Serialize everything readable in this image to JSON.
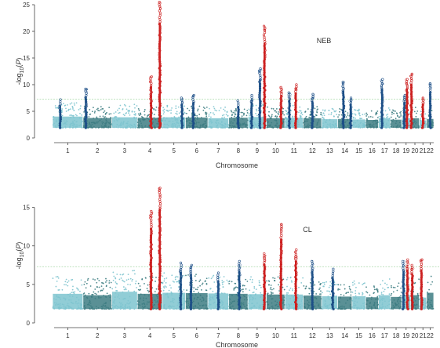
{
  "chart_data": [
    {
      "type": "scatter",
      "subtype": "manhattan",
      "panel_label": "NEB",
      "xlabel": "Chromosome",
      "ylabel": "-log10(P)",
      "ylim": [
        0,
        25
      ],
      "yticks": [
        0,
        5,
        10,
        15,
        20,
        25
      ],
      "categories": [
        "1",
        "2",
        "3",
        "4",
        "5",
        "6",
        "7",
        "8",
        "9",
        "10",
        "11",
        "12",
        "13",
        "14",
        "15",
        "16",
        "17",
        "18",
        "19",
        "20",
        "21",
        "22"
      ],
      "significance_threshold": 7.3,
      "baseline_min": 1.9,
      "bulk_max": [
        6.6,
        6.0,
        6.3,
        6.1,
        6.3,
        6.2,
        5.9,
        6.1,
        6.4,
        5.9,
        6.1,
        5.9,
        5.5,
        5.6,
        5.4,
        5.2,
        5.9,
        5.3,
        5.9,
        5.9,
        5.0,
        5.6
      ],
      "peaks": [
        {
          "chr": "1",
          "pos": 0.25,
          "max": 7.2,
          "color": "navy"
        },
        {
          "chr": "2",
          "pos": 0.1,
          "max": 9.2,
          "color": "navy"
        },
        {
          "chr": "4",
          "pos": 0.55,
          "max": 11.5,
          "color": "red"
        },
        {
          "chr": "4",
          "pos": 0.9,
          "max": 25.5,
          "color": "red"
        },
        {
          "chr": "5",
          "pos": 0.85,
          "max": 7.5,
          "color": "navy"
        },
        {
          "chr": "6",
          "pos": 0.35,
          "max": 8.0,
          "color": "navy"
        },
        {
          "chr": "8",
          "pos": 0.5,
          "max": 7.0,
          "color": "navy"
        },
        {
          "chr": "9",
          "pos": 0.2,
          "max": 8.0,
          "color": "navy"
        },
        {
          "chr": "9",
          "pos": 0.65,
          "max": 13.0,
          "color": "navy"
        },
        {
          "chr": "9",
          "pos": 0.9,
          "max": 21.0,
          "color": "red"
        },
        {
          "chr": "10",
          "pos": 0.8,
          "max": 9.5,
          "color": "red"
        },
        {
          "chr": "11",
          "pos": 0.25,
          "max": 8.5,
          "color": "navy"
        },
        {
          "chr": "11",
          "pos": 0.6,
          "max": 10.0,
          "color": "red"
        },
        {
          "chr": "12",
          "pos": 0.5,
          "max": 8.2,
          "color": "navy"
        },
        {
          "chr": "14",
          "pos": 0.4,
          "max": 10.5,
          "color": "navy"
        },
        {
          "chr": "14",
          "pos": 0.9,
          "max": 7.5,
          "color": "navy"
        },
        {
          "chr": "17",
          "pos": 0.3,
          "max": 11.0,
          "color": "navy"
        },
        {
          "chr": "19",
          "pos": 0.3,
          "max": 8.0,
          "color": "navy"
        },
        {
          "chr": "19",
          "pos": 0.6,
          "max": 11.0,
          "color": "red"
        },
        {
          "chr": "20",
          "pos": 0.1,
          "max": 12.0,
          "color": "red"
        },
        {
          "chr": "21",
          "pos": 0.5,
          "max": 7.5,
          "color": "red"
        },
        {
          "chr": "22",
          "pos": 0.5,
          "max": 10.2,
          "color": "navy"
        }
      ],
      "grid": false,
      "legend": "none"
    },
    {
      "type": "scatter",
      "subtype": "manhattan",
      "panel_label": "CL",
      "xlabel": "Chromosome",
      "ylabel": "-log10(P)",
      "ylim": [
        0,
        17.5
      ],
      "yticks": [
        0,
        5,
        10,
        15
      ],
      "categories": [
        "1",
        "2",
        "3",
        "4",
        "5",
        "6",
        "7",
        "8",
        "9",
        "10",
        "11",
        "12",
        "13",
        "14",
        "15",
        "16",
        "17",
        "18",
        "19",
        "20",
        "21",
        "22"
      ],
      "significance_threshold": 7.3,
      "baseline_min": 1.8,
      "bulk_max": [
        6.2,
        5.8,
        6.8,
        6.2,
        6.5,
        6.4,
        6.3,
        6.2,
        6.1,
        6.0,
        6.0,
        5.7,
        5.5,
        5.4,
        5.5,
        5.2,
        5.8,
        5.3,
        5.8,
        5.8,
        5.1,
        6.5
      ],
      "peaks": [
        {
          "chr": "4",
          "pos": 0.55,
          "max": 14.5,
          "color": "red"
        },
        {
          "chr": "4",
          "pos": 0.9,
          "max": 17.5,
          "color": "red"
        },
        {
          "chr": "5",
          "pos": 0.8,
          "max": 7.8,
          "color": "navy"
        },
        {
          "chr": "6",
          "pos": 0.25,
          "max": 7.5,
          "color": "navy"
        },
        {
          "chr": "7",
          "pos": 0.5,
          "max": 6.5,
          "color": "navy"
        },
        {
          "chr": "8",
          "pos": 0.55,
          "max": 8.0,
          "color": "navy"
        },
        {
          "chr": "9",
          "pos": 0.9,
          "max": 9.0,
          "color": "red"
        },
        {
          "chr": "10",
          "pos": 0.8,
          "max": 12.8,
          "color": "red"
        },
        {
          "chr": "11",
          "pos": 0.6,
          "max": 9.5,
          "color": "red"
        },
        {
          "chr": "12",
          "pos": 0.5,
          "max": 8.0,
          "color": "navy"
        },
        {
          "chr": "13",
          "pos": 0.7,
          "max": 7.0,
          "color": "navy"
        },
        {
          "chr": "19",
          "pos": 0.2,
          "max": 8.0,
          "color": "navy"
        },
        {
          "chr": "19",
          "pos": 0.65,
          "max": 8.2,
          "color": "red"
        },
        {
          "chr": "20",
          "pos": 0.2,
          "max": 7.5,
          "color": "red"
        },
        {
          "chr": "21",
          "pos": 0.3,
          "max": 8.2,
          "color": "red"
        }
      ],
      "grid": false,
      "legend": "none"
    }
  ],
  "colors": {
    "chr_odd": "#7ec4cf",
    "chr_even": "#3d7d82",
    "peak_navy": "#1d4f87",
    "peak_red": "#cc1f1f",
    "threshold": "#a8d8a8",
    "axis": "#444444"
  }
}
